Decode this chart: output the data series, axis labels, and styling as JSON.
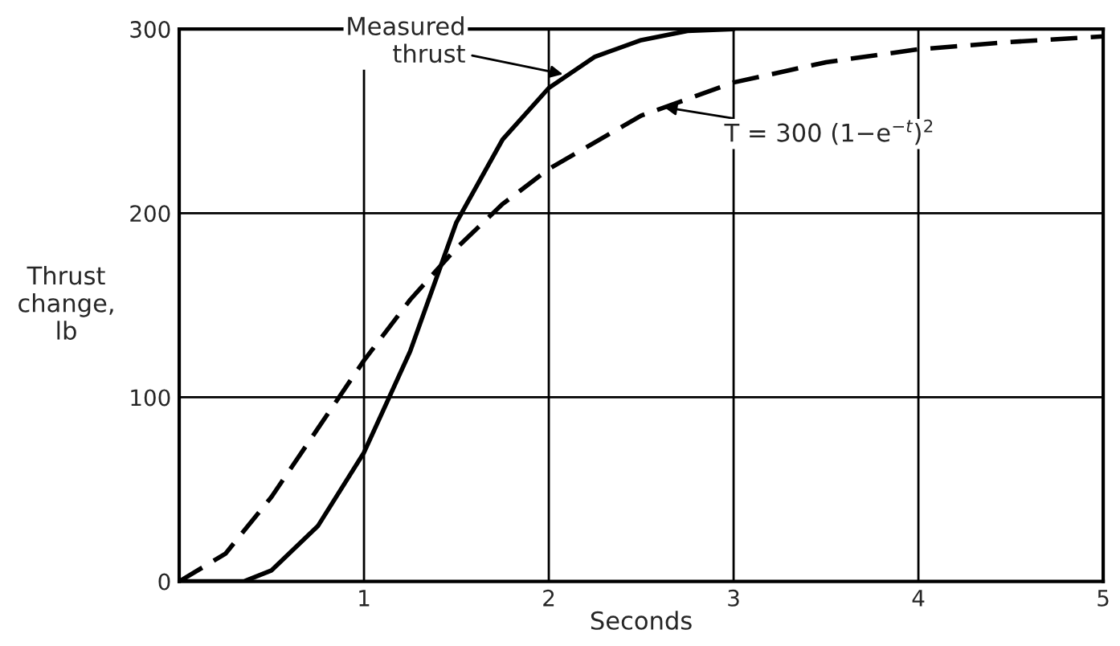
{
  "chart_data": {
    "type": "line",
    "xlabel": "Seconds",
    "ylabel": "Thrust\nchange,\nlb",
    "xlim": [
      0,
      5
    ],
    "ylim": [
      0,
      300
    ],
    "xticks": [
      1,
      2,
      3,
      4,
      5
    ],
    "yticks": [
      0,
      100,
      200,
      300
    ],
    "grid": true,
    "marker": "none",
    "series": [
      {
        "color": "#000000",
        "line_style": "solid",
        "x": [
          0,
          0.35,
          0.5,
          0.75,
          1,
          1.25,
          1.5,
          1.75,
          2,
          2.25,
          2.5,
          2.75,
          3
        ],
        "values": [
          0,
          0,
          6,
          30,
          70,
          125,
          195,
          240,
          268,
          285,
          294,
          299,
          300
        ]
      },
      {
        "color": "#000000",
        "line_style": "dashed",
        "x": [
          0,
          0.25,
          0.5,
          0.75,
          1,
          1.25,
          1.5,
          1.75,
          2,
          2.5,
          3,
          3.5,
          4,
          4.5,
          5
        ],
        "values": [
          0,
          15,
          46,
          83,
          120,
          153,
          181,
          205,
          224,
          253,
          271,
          282,
          289,
          293,
          296
        ]
      }
    ],
    "annotations": [
      {
        "text": "Measured\nthrust",
        "x": 2.1,
        "y": 275
      },
      {
        "text": "T = 300 (1−e$^{−t}$)$^{2}$",
        "x": 2.6,
        "y": 258
      }
    ]
  }
}
